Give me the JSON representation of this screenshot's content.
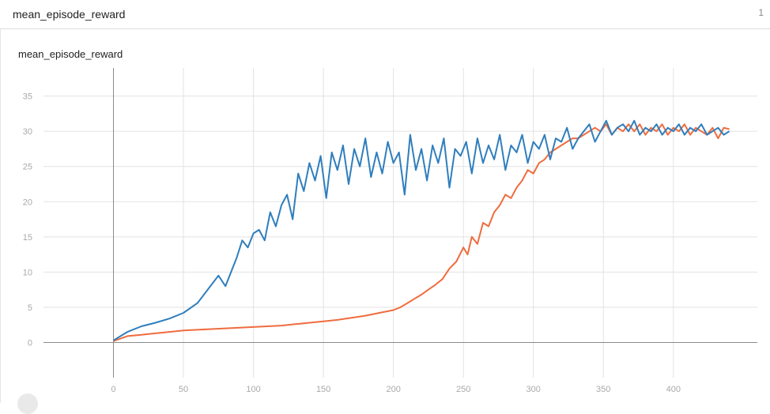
{
  "header": {
    "title": "mean_episode_reward",
    "count": "1"
  },
  "card": {
    "title": "mean_episode_reward"
  },
  "colors": {
    "blue": "#2f7ebd",
    "orange": "#ef6c3e",
    "grid": "#e2e2e2",
    "axis": "#8a8a8a"
  },
  "chart_data": {
    "type": "line",
    "title": "mean_episode_reward",
    "xlim": [
      -50,
      460
    ],
    "ylim": [
      -5,
      39
    ],
    "xticks": [
      0,
      50,
      100,
      150,
      200,
      250,
      300,
      350,
      400
    ],
    "yticks": [
      0,
      5,
      10,
      15,
      20,
      25,
      30,
      35
    ],
    "grid": true,
    "series": [
      {
        "color": "blue",
        "x": [
          0,
          10,
          20,
          30,
          40,
          50,
          60,
          70,
          75,
          80,
          85,
          88,
          92,
          96,
          100,
          104,
          108,
          112,
          116,
          120,
          124,
          128,
          132,
          136,
          140,
          144,
          148,
          152,
          156,
          160,
          164,
          168,
          172,
          176,
          180,
          184,
          188,
          192,
          196,
          200,
          204,
          208,
          212,
          216,
          220,
          224,
          228,
          232,
          236,
          240,
          244,
          248,
          252,
          256,
          260,
          264,
          268,
          272,
          276,
          280,
          284,
          288,
          292,
          296,
          300,
          304,
          308,
          312,
          316,
          320,
          324,
          328,
          332,
          336,
          340,
          344,
          348,
          352,
          356,
          360,
          364,
          368,
          372,
          376,
          380,
          384,
          388,
          392,
          396,
          400,
          404,
          408,
          412,
          416,
          420,
          424,
          428,
          432,
          436,
          440
        ],
        "y": [
          0.3,
          1.5,
          2.3,
          2.8,
          3.4,
          4.2,
          5.6,
          8.2,
          9.5,
          8.0,
          10.5,
          12.0,
          14.5,
          13.5,
          15.5,
          16.0,
          14.5,
          18.5,
          16.5,
          19.5,
          21.0,
          17.5,
          24.0,
          21.5,
          25.5,
          23.0,
          26.5,
          20.5,
          27.0,
          24.5,
          28.0,
          22.5,
          27.5,
          25.0,
          29.0,
          23.5,
          27.0,
          24.0,
          28.5,
          25.5,
          27.0,
          21.0,
          29.5,
          24.5,
          27.5,
          23.0,
          28.0,
          25.5,
          29.0,
          22.0,
          27.5,
          26.5,
          28.5,
          24.0,
          29.0,
          25.5,
          28.0,
          26.0,
          29.5,
          24.5,
          28.0,
          27.0,
          29.5,
          25.5,
          28.5,
          27.5,
          29.5,
          26.0,
          29.0,
          28.5,
          30.5,
          27.5,
          29.0,
          30.0,
          31.0,
          28.5,
          30.0,
          31.5,
          29.5,
          30.5,
          31.0,
          30.0,
          31.5,
          29.5,
          30.5,
          30.0,
          31.0,
          29.5,
          30.5,
          30.0,
          31.0,
          29.5,
          30.5,
          30.0,
          31.0,
          29.5,
          30.0,
          30.5,
          29.5,
          30.0
        ]
      },
      {
        "color": "orange",
        "x": [
          0,
          10,
          20,
          30,
          40,
          50,
          60,
          70,
          80,
          90,
          100,
          110,
          120,
          130,
          140,
          150,
          160,
          170,
          180,
          190,
          200,
          205,
          210,
          215,
          220,
          225,
          230,
          235,
          240,
          245,
          250,
          253,
          256,
          260,
          264,
          268,
          272,
          276,
          280,
          284,
          288,
          292,
          296,
          300,
          304,
          308,
          312,
          316,
          320,
          324,
          328,
          332,
          336,
          340,
          344,
          348,
          352,
          356,
          360,
          364,
          368,
          372,
          376,
          380,
          384,
          388,
          392,
          396,
          400,
          404,
          408,
          412,
          416,
          420,
          424,
          428,
          432,
          436,
          440
        ],
        "y": [
          0.2,
          0.9,
          1.1,
          1.3,
          1.5,
          1.7,
          1.8,
          1.9,
          2.0,
          2.1,
          2.2,
          2.3,
          2.4,
          2.6,
          2.8,
          3.0,
          3.2,
          3.5,
          3.8,
          4.2,
          4.6,
          5.0,
          5.6,
          6.2,
          6.8,
          7.5,
          8.2,
          9.0,
          10.5,
          11.5,
          13.5,
          12.5,
          15.0,
          14.0,
          17.0,
          16.5,
          18.5,
          19.5,
          21.0,
          20.5,
          22.0,
          23.0,
          24.5,
          24.0,
          25.5,
          26.0,
          27.0,
          27.5,
          28.0,
          28.5,
          29.0,
          29.0,
          29.5,
          30.0,
          30.5,
          30.0,
          31.0,
          29.5,
          30.5,
          30.0,
          31.0,
          30.0,
          31.0,
          29.5,
          30.5,
          30.0,
          31.0,
          29.5,
          30.5,
          30.0,
          31.0,
          29.5,
          30.5,
          30.0,
          29.5,
          30.5,
          29.0,
          30.5,
          30.3
        ]
      }
    ]
  }
}
